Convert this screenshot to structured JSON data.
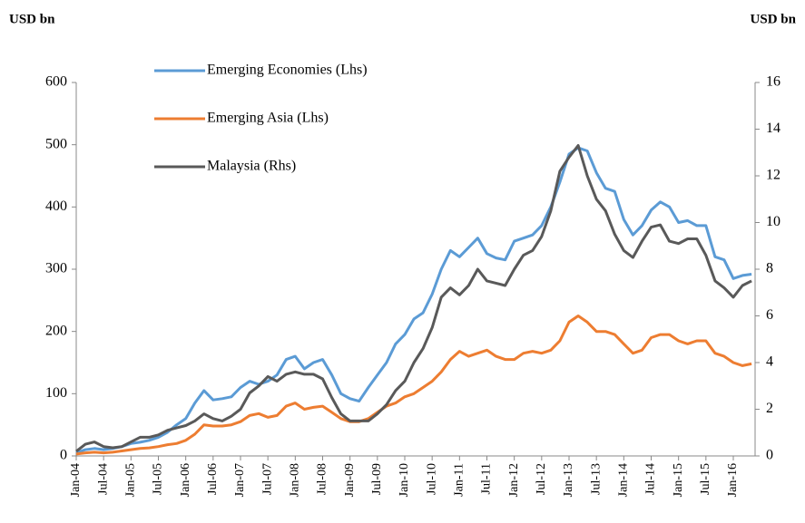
{
  "chart_data": {
    "type": "line",
    "y_label": "USD bn",
    "y2_label": "USD bn",
    "categories": [
      "Jan-04",
      null,
      null,
      "Jul-04",
      null,
      null,
      "Jan-05",
      null,
      null,
      "Jul-05",
      null,
      null,
      "Jan-06",
      null,
      null,
      "Jul-06",
      null,
      null,
      "Jan-07",
      null,
      null,
      "Jul-07",
      null,
      null,
      "Jan-08",
      null,
      null,
      "Jul-08",
      null,
      null,
      "Jan-09",
      null,
      null,
      "Jul-09",
      null,
      null,
      "Jan-10",
      null,
      null,
      "Jul-10",
      null,
      null,
      "Jan-11",
      null,
      null,
      "Jul-11",
      null,
      null,
      "Jan-12",
      null,
      null,
      "Jul-12",
      null,
      null,
      "Jan-13",
      null,
      null,
      "Jul-13",
      null,
      null,
      "Jan-14",
      null,
      null,
      "Jul-14",
      null,
      null,
      "Jan-15",
      null,
      null,
      "Jul-15",
      null,
      null,
      "Jan-16",
      null,
      null
    ],
    "series": [
      {
        "name": "Emerging Economies (Lhs)",
        "color": "#5b9bd5",
        "values": [
          5,
          10,
          12,
          10,
          12,
          15,
          20,
          22,
          25,
          30,
          38,
          50,
          60,
          85,
          105,
          90,
          92,
          95,
          110,
          120,
          115,
          120,
          130,
          155,
          160,
          140,
          150,
          155,
          130,
          100,
          92,
          88,
          110,
          130,
          150,
          180,
          195,
          220,
          230,
          260,
          300,
          330,
          320,
          335,
          350,
          325,
          318,
          315,
          345,
          350,
          355,
          370,
          400,
          440,
          485,
          495,
          490,
          455,
          430,
          425,
          380,
          355,
          370,
          395,
          408,
          400,
          375,
          378,
          370,
          370,
          320,
          315,
          285,
          290,
          292
        ]
      },
      {
        "name": "Emerging Asia (Lhs)",
        "color": "#ed7d31",
        "values": [
          3,
          5,
          6,
          5,
          6,
          8,
          10,
          12,
          13,
          15,
          18,
          20,
          25,
          35,
          50,
          48,
          48,
          50,
          55,
          65,
          68,
          62,
          65,
          80,
          85,
          75,
          78,
          80,
          70,
          60,
          55,
          55,
          60,
          70,
          80,
          85,
          95,
          100,
          110,
          120,
          135,
          155,
          168,
          160,
          165,
          170,
          160,
          155,
          155,
          165,
          168,
          165,
          170,
          185,
          215,
          225,
          215,
          200,
          200,
          195,
          180,
          165,
          170,
          190,
          195,
          195,
          185,
          180,
          185,
          185,
          165,
          160,
          150,
          145,
          148
        ]
      },
      {
        "name": "Malaysia (Rhs)",
        "color": "#595959",
        "axis": "y2",
        "values": [
          0.2,
          0.5,
          0.6,
          0.4,
          0.35,
          0.4,
          0.6,
          0.8,
          0.8,
          0.9,
          1.1,
          1.2,
          1.3,
          1.5,
          1.8,
          1.6,
          1.5,
          1.7,
          2.0,
          2.7,
          3.0,
          3.4,
          3.2,
          3.5,
          3.6,
          3.5,
          3.5,
          3.3,
          2.5,
          1.8,
          1.5,
          1.5,
          1.5,
          1.8,
          2.2,
          2.8,
          3.2,
          4.0,
          4.6,
          5.5,
          6.8,
          7.2,
          6.9,
          7.3,
          8.0,
          7.5,
          7.4,
          7.3,
          8.0,
          8.6,
          8.8,
          9.4,
          10.5,
          12.2,
          12.8,
          13.3,
          12.0,
          11.0,
          10.5,
          9.5,
          8.8,
          8.5,
          9.2,
          9.8,
          9.9,
          9.2,
          9.1,
          9.3,
          9.3,
          8.6,
          7.5,
          7.2,
          6.8,
          7.3,
          7.5
        ]
      }
    ],
    "ylim": [
      0,
      600
    ],
    "yticks": [
      0,
      100,
      200,
      300,
      400,
      500,
      600
    ],
    "y2lim": [
      0,
      16
    ],
    "y2ticks": [
      0,
      2,
      4,
      6,
      8,
      10,
      12,
      14,
      16
    ],
    "grid": false
  }
}
